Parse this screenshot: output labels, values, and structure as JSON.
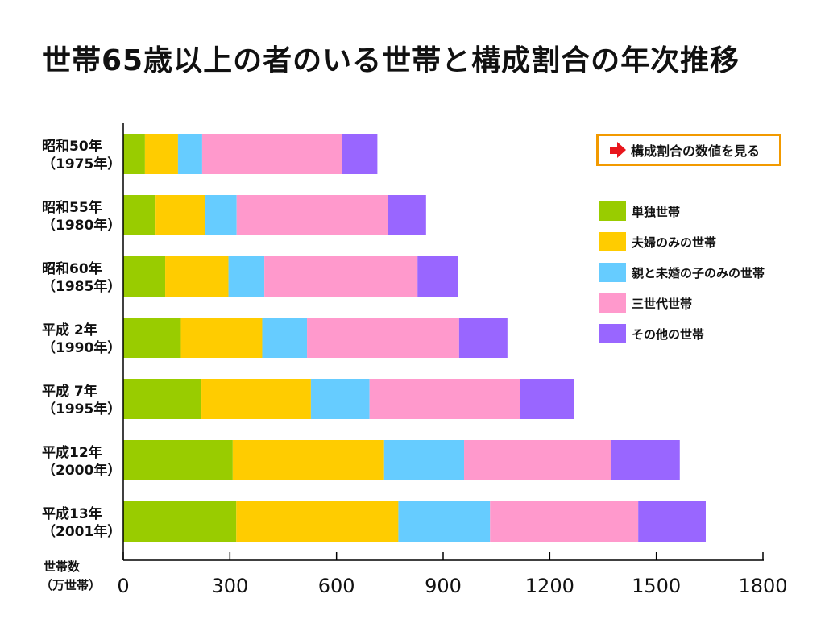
{
  "title": "世帯65歳以上の者のいる世帯と構成割合の年次推移",
  "button": {
    "label": "構成割合の数値を見る"
  },
  "axis_unit": [
    "世帯数",
    "（万世帯）"
  ],
  "chart_data": {
    "type": "bar",
    "orientation": "horizontal",
    "stacked": true,
    "categories": [
      [
        "昭和50年",
        "（1975年）"
      ],
      [
        "昭和55年",
        "（1980年）"
      ],
      [
        "昭和60年",
        "（1985年）"
      ],
      [
        "平成  2年",
        "（1990年）"
      ],
      [
        "平成  7年",
        "（1995年）"
      ],
      [
        "平成12年",
        "（2000年）"
      ],
      [
        "平成13年",
        "（2001年）"
      ]
    ],
    "series": [
      {
        "name": "単独世帯",
        "color": "#99cc00",
        "values": [
          61,
          91,
          118,
          162,
          220,
          308,
          318
        ]
      },
      {
        "name": "夫婦のみの世帯",
        "color": "#ffcc00",
        "values": [
          93,
          139,
          178,
          229,
          308,
          426,
          456
        ]
      },
      {
        "name": "親と未婚の子のみの世帯",
        "color": "#66ccff",
        "values": [
          68,
          89,
          101,
          126,
          165,
          225,
          258
        ]
      },
      {
        "name": "三世代世帯",
        "color": "#ff99cc",
        "values": [
          393,
          425,
          431,
          428,
          423,
          414,
          417
        ]
      },
      {
        "name": "その他の世帯",
        "color": "#9966ff",
        "values": [
          100,
          108,
          115,
          136,
          153,
          193,
          190
        ]
      }
    ],
    "xlim": [
      0,
      1800
    ],
    "xticks": [
      0,
      300,
      600,
      900,
      1200,
      1500,
      1800
    ],
    "grid": false,
    "legend_position": "right"
  }
}
